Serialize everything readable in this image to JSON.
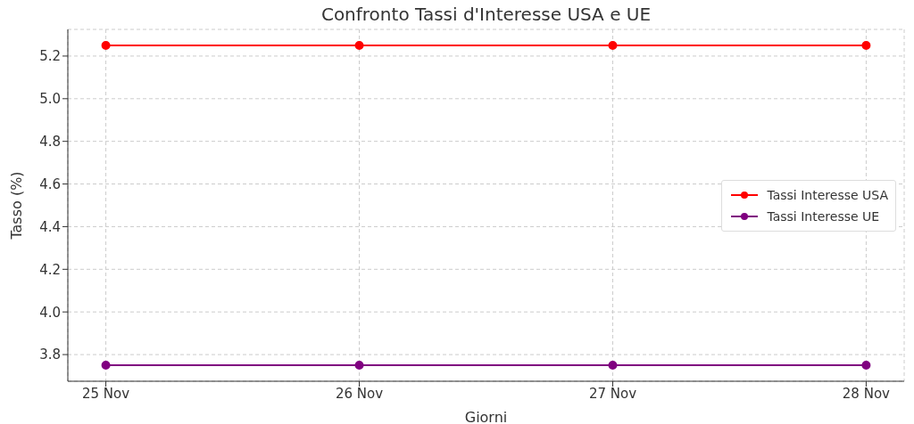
{
  "chart_data": {
    "type": "line",
    "title": "Confronto Tassi d'Interesse USA e UE",
    "xlabel": "Giorni",
    "ylabel": "Tasso (%)",
    "categories": [
      "25 Nov",
      "26 Nov",
      "27 Nov",
      "28 Nov"
    ],
    "series": [
      {
        "name": "Tassi Interesse USA",
        "color": "#ff0000",
        "values": [
          5.25,
          5.25,
          5.25,
          5.25
        ]
      },
      {
        "name": "Tassi Interesse UE",
        "color": "#800080",
        "values": [
          3.75,
          3.75,
          3.75,
          3.75
        ]
      }
    ],
    "ylim": [
      3.675,
      5.325
    ],
    "yticks": [
      {
        "value": 3.8,
        "label": "3.8"
      },
      {
        "value": 4.0,
        "label": "4.0"
      },
      {
        "value": 4.2,
        "label": "4.2"
      },
      {
        "value": 4.4,
        "label": "4.4"
      },
      {
        "value": 4.6,
        "label": "4.6"
      },
      {
        "value": 4.8,
        "label": "4.8"
      },
      {
        "value": 5.0,
        "label": "5.0"
      },
      {
        "value": 5.2,
        "label": "5.2"
      }
    ],
    "grid": true,
    "legend": "right",
    "marker": "circle",
    "line_style": "solid"
  }
}
